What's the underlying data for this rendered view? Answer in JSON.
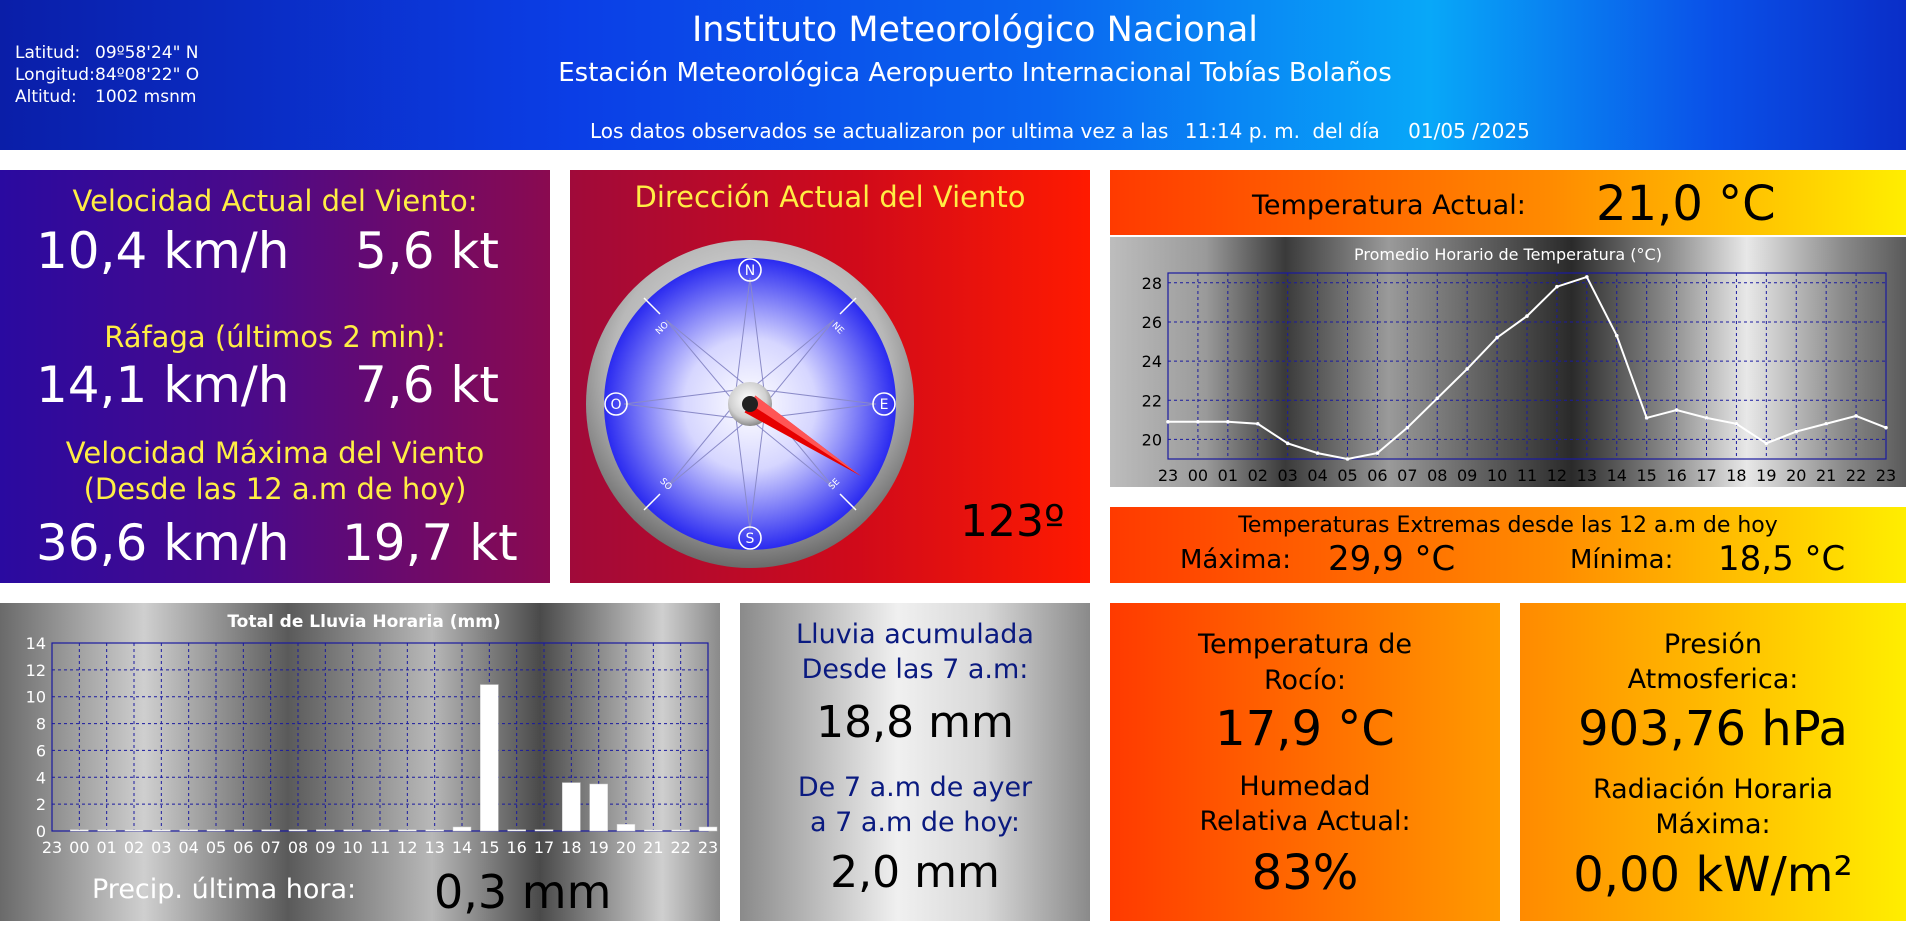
{
  "header": {
    "coords": [
      {
        "label": "Latitud:",
        "value": "09º58'24\" N"
      },
      {
        "label": "Longitud:",
        "value": "84º08'22\" O"
      },
      {
        "label": "Altitud:",
        "value": "1002 msnm"
      }
    ],
    "title": "Instituto Meteorológico Nacional",
    "subtitle": "Estación Meteorológica Aeropuerto Internacional Tobías Bolaños",
    "update_prefix": "Los datos observados se actualizaron por ultima vez a las",
    "update_time": "11:14 p. m.",
    "update_day_label": "del día",
    "update_date": "01/05 /2025"
  },
  "wind": {
    "current_label": "Velocidad Actual del Viento:",
    "current_kmh": "10,4 km/h",
    "current_kt": "5,6 kt",
    "gust_label": "Ráfaga (últimos 2 min):",
    "gust_kmh": "14,1 km/h",
    "gust_kt": "7,6 kt",
    "max_label_1": "Velocidad Máxima del Viento",
    "max_label_2": "(Desde las 12 a.m de hoy)",
    "max_kmh": "36,6 km/h",
    "max_kt": "19,7 kt"
  },
  "direction": {
    "title": "Dirección Actual del Viento",
    "value_text": "123º",
    "degrees": 123,
    "cardinals": {
      "n": "N",
      "e": "E",
      "s": "S",
      "o": "O"
    },
    "intercardinals": {
      "no": "NO",
      "ne": "NE",
      "so": "SO",
      "se": "SE"
    }
  },
  "temperature": {
    "label": "Temperatura Actual:",
    "value": "21,0 °C"
  },
  "extremes": {
    "title": "Temperaturas Extremas desde las 12 a.m de hoy",
    "max_label": "Máxima:",
    "max_value": "29,9 °C",
    "min_label": "Mínima:",
    "min_value": "18,5 °C"
  },
  "rain": {
    "last_hour_label": "Precip. última hora:",
    "last_hour_value": "0,3 mm"
  },
  "accumulated": {
    "label1_a": "Lluvia acumulada",
    "label1_b": "Desde las 7 a.m:",
    "value1": "18,8 mm",
    "label2_a": "De 7 a.m de ayer",
    "label2_b": "a 7 a.m de hoy:",
    "value2": "2,0 mm"
  },
  "dew": {
    "label_a": "Temperatura de",
    "label_b": "Rocío:",
    "value": "17,9 °C",
    "hum_label_a": "Humedad",
    "hum_label_b": "Relativa Actual:",
    "hum_value": "83%"
  },
  "pressure": {
    "label_a": "Presión",
    "label_b": "Atmosferica:",
    "value": "903,76 hPa",
    "rad_label_a": "Radiación Horaria",
    "rad_label_b": "Máxima:",
    "rad_value": "0,00 kW/m²"
  },
  "chart_data": [
    {
      "type": "line",
      "title": "Promedio Horario de Temperatura (°C)",
      "x": [
        "23",
        "00",
        "01",
        "02",
        "03",
        "04",
        "05",
        "06",
        "07",
        "08",
        "09",
        "10",
        "11",
        "12",
        "13",
        "14",
        "15",
        "16",
        "17",
        "18",
        "19",
        "20",
        "21",
        "22",
        "23"
      ],
      "values": [
        20.9,
        20.9,
        20.9,
        20.8,
        19.8,
        19.3,
        19.0,
        19.3,
        20.6,
        22.1,
        23.6,
        25.2,
        26.3,
        27.8,
        28.3,
        25.3,
        21.1,
        21.5,
        21.1,
        20.8,
        19.8,
        20.4,
        20.8,
        21.2,
        20.6
      ],
      "ylim": [
        19,
        28.5
      ],
      "yticks": [
        20,
        22,
        24,
        26,
        28
      ],
      "grid": true,
      "color": "#ffffff"
    },
    {
      "type": "bar",
      "title": "Total de Lluvia Horaria (mm)",
      "x": [
        "23",
        "00",
        "01",
        "02",
        "03",
        "04",
        "05",
        "06",
        "07",
        "08",
        "09",
        "10",
        "11",
        "12",
        "13",
        "14",
        "15",
        "16",
        "17",
        "18",
        "19",
        "20",
        "21",
        "22",
        "23"
      ],
      "values": [
        0,
        0.1,
        0.1,
        0.1,
        0.1,
        0.1,
        0.1,
        0.1,
        0.1,
        0.1,
        0.1,
        0.1,
        0.1,
        0.1,
        0.1,
        0.3,
        10.9,
        0.1,
        0.1,
        3.6,
        3.5,
        0.5,
        0.1,
        0.1,
        0.3
      ],
      "ylim": [
        0,
        14
      ],
      "yticks": [
        0,
        2,
        4,
        6,
        8,
        10,
        12,
        14
      ],
      "grid": true,
      "color": "#ffffff"
    }
  ]
}
